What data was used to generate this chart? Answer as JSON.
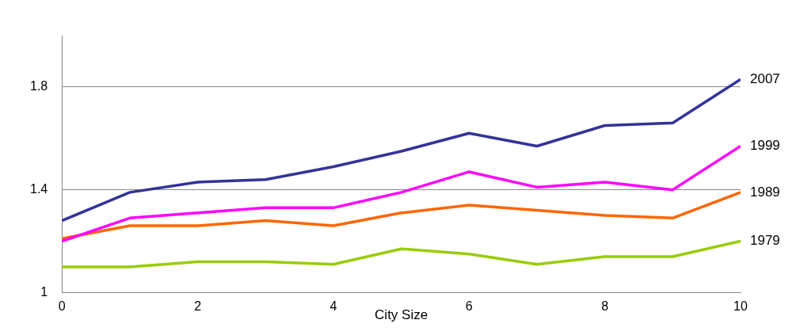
{
  "chart_data": {
    "type": "line",
    "xlabel": "City Size",
    "x": [
      0,
      1,
      2,
      3,
      4,
      5,
      6,
      7,
      8,
      9,
      10
    ],
    "xlim": [
      0,
      10
    ],
    "xticks": [
      0,
      2,
      4,
      6,
      8,
      10
    ],
    "ylim": [
      1,
      2
    ],
    "yticks": [
      1,
      1.4,
      1.8
    ],
    "grid": "y",
    "legend": false,
    "marker": "none",
    "line_style": "solid",
    "series": [
      {
        "name": "2007",
        "color": "#333399",
        "values": [
          1.28,
          1.39,
          1.43,
          1.44,
          1.49,
          1.55,
          1.62,
          1.57,
          1.65,
          1.66,
          1.83
        ]
      },
      {
        "name": "1999",
        "color": "#ff00ff",
        "values": [
          1.2,
          1.29,
          1.31,
          1.33,
          1.33,
          1.39,
          1.47,
          1.41,
          1.43,
          1.4,
          1.57
        ]
      },
      {
        "name": "1989",
        "color": "#ff6600",
        "values": [
          1.21,
          1.26,
          1.26,
          1.28,
          1.26,
          1.31,
          1.34,
          1.32,
          1.3,
          1.29,
          1.39
        ]
      },
      {
        "name": "1979",
        "color": "#99cc00",
        "values": [
          1.1,
          1.1,
          1.12,
          1.12,
          1.11,
          1.17,
          1.15,
          1.11,
          1.14,
          1.14,
          1.2
        ]
      }
    ]
  }
}
